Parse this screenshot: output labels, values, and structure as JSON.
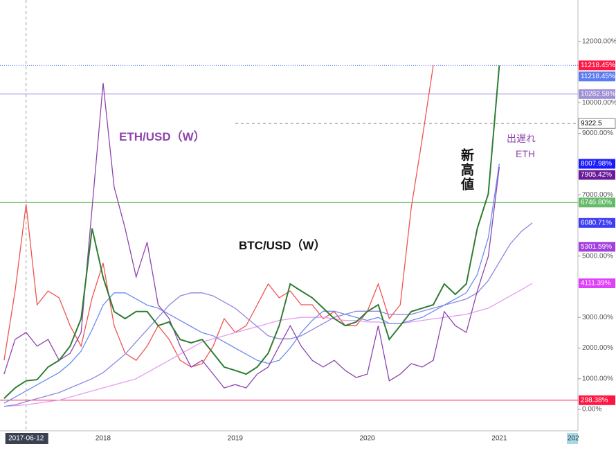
{
  "chart_data": {
    "type": "line",
    "categories": [
      null,
      null,
      "2017-06-12",
      null,
      null,
      null,
      null,
      null,
      null,
      "2018",
      null,
      null,
      null,
      null,
      null,
      null,
      null,
      null,
      null,
      null,
      null,
      "2019",
      null,
      null,
      null,
      null,
      null,
      null,
      null,
      null,
      null,
      null,
      null,
      "2020",
      null,
      null,
      null,
      null,
      null,
      null,
      null,
      null,
      null,
      null,
      null,
      "2021",
      null,
      null,
      null,
      null,
      null,
      null,
      "202"
    ],
    "series": [
      {
        "color": "#ef5350",
        "values": [
          1600,
          3860,
          6690,
          3410,
          3860,
          3640,
          2730,
          2060,
          3640,
          4770,
          2730,
          1830,
          1600,
          2060,
          2730,
          2280,
          1600,
          1380,
          1490,
          2060,
          2960,
          2510,
          2730,
          3410,
          4090,
          3640,
          3860,
          3410,
          3410,
          2960,
          3190,
          2730,
          2730,
          3190,
          4090,
          2960,
          3410,
          6580,
          8840,
          11218.45,
          null,
          null,
          null,
          null,
          null,
          null,
          null,
          null,
          null,
          null,
          null,
          null,
          null
        ]
      },
      {
        "color": "#e59cf0",
        "values": [
          100,
          120,
          150,
          200,
          250,
          300,
          400,
          500,
          600,
          700,
          800,
          900,
          1000,
          1200,
          1400,
          1600,
          1800,
          2000,
          2200,
          2300,
          2400,
          2500,
          2600,
          2700,
          2800,
          2900,
          2950,
          3000,
          3000,
          3000,
          2950,
          2900,
          2900,
          2850,
          2850,
          2800,
          2800,
          2850,
          2900,
          2950,
          3000,
          3050,
          3100,
          3200,
          3300,
          3500,
          3700,
          3900,
          4111.39,
          null,
          null,
          null,
          null
        ]
      },
      {
        "color": "#8f86e0",
        "values": [
          100,
          150,
          250,
          350,
          450,
          550,
          700,
          850,
          1000,
          1200,
          1500,
          1800,
          2200,
          2600,
          3000,
          3400,
          3700,
          3800,
          3800,
          3700,
          3500,
          3300,
          3000,
          2700,
          2400,
          2300,
          2300,
          2400,
          2600,
          2800,
          3000,
          3100,
          3200,
          3200,
          3200,
          3100,
          3100,
          3100,
          3200,
          3300,
          3400,
          3500,
          3600,
          3800,
          4200,
          4800,
          5400,
          5800,
          6080.71,
          null,
          null,
          null,
          null
        ]
      },
      {
        "color": "#6a8cf0",
        "values": [
          200,
          400,
          600,
          800,
          1000,
          1200,
          1500,
          1900,
          2600,
          3400,
          3800,
          3800,
          3600,
          3400,
          3300,
          3100,
          2900,
          2700,
          2500,
          2400,
          2200,
          2000,
          1800,
          1600,
          1500,
          1600,
          2000,
          2500,
          2900,
          3200,
          3200,
          3100,
          3000,
          2900,
          3000,
          2800,
          2800,
          2900,
          3000,
          3200,
          3400,
          3600,
          3800,
          4400,
          5600,
          8007.98,
          null,
          null,
          null,
          null,
          null,
          null,
          null
        ]
      },
      {
        "name": "ETH/USD（W）",
        "color": "#8e44ad",
        "values": [
          1150,
          2280,
          2510,
          2060,
          2280,
          1600,
          1830,
          2510,
          6580,
          10640,
          7250,
          5900,
          4320,
          5450,
          3410,
          2960,
          2060,
          1380,
          1600,
          1150,
          700,
          810,
          700,
          1150,
          1380,
          2060,
          2730,
          2060,
          1600,
          1380,
          1600,
          1270,
          1040,
          1150,
          2730,
          930,
          1150,
          1490,
          1380,
          1600,
          3190,
          2730,
          2510,
          3860,
          4990,
          7905.42,
          null,
          null,
          null,
          null,
          null,
          null,
          null
        ]
      },
      {
        "name": "BTC/USD（W）",
        "color": "#2e7d32",
        "values": [
          360,
          700,
          930,
          970,
          1380,
          1600,
          2060,
          2960,
          5900,
          4300,
          3190,
          2960,
          3190,
          3190,
          2730,
          2850,
          2280,
          2170,
          2280,
          1830,
          1380,
          1270,
          1150,
          1380,
          1830,
          2730,
          4090,
          3860,
          3640,
          3300,
          2960,
          2730,
          2850,
          3190,
          3410,
          2280,
          2730,
          3190,
          3300,
          3410,
          4090,
          3750,
          4090,
          5900,
          7030,
          11218.45,
          null,
          null,
          null,
          null,
          null,
          null,
          null
        ]
      }
    ],
    "ylim": [
      -700,
      13350
    ],
    "yticks": [
      {
        "value": 0,
        "label": "0.00%"
      },
      {
        "value": 1000,
        "label": "1000.00%"
      },
      {
        "value": 2000,
        "label": "2000.00%"
      },
      {
        "value": 3000,
        "label": "3000.00%"
      },
      {
        "value": 5000,
        "label": "5000.00%"
      },
      {
        "value": 7000,
        "label": "7000.00%"
      },
      {
        "value": 9000,
        "label": "9000.00%"
      },
      {
        "value": 10000,
        "label": "10000.00%"
      },
      {
        "value": 12000,
        "label": "12000.00%"
      }
    ],
    "axis_markers": [
      {
        "value": 11218.45,
        "label": "11218.45%",
        "color": "#ff1744"
      },
      {
        "value": 11218.45,
        "label": "11218.45%",
        "color": "#5b7cf0",
        "line": "dotted"
      },
      {
        "value": 10282.58,
        "label": "10282.58%",
        "color": "#9f8fd6",
        "line": "solid"
      },
      {
        "value": 9322.5,
        "label": "9322.5",
        "color": "#ffffff",
        "line": "dashed"
      },
      {
        "value": 8007.98,
        "label": "8007.98%",
        "color": "#1a1aff"
      },
      {
        "value": 7905.42,
        "label": "7905.42%",
        "color": "#6a1b9a"
      },
      {
        "value": 6746.8,
        "label": "6746.80%",
        "color": "#66bb6a",
        "line": "solid"
      },
      {
        "value": 6080.71,
        "label": "6080.71%",
        "color": "#3d3df5"
      },
      {
        "value": 5301.59,
        "label": "5301.59%",
        "color": "#a23fe0"
      },
      {
        "value": 4111.39,
        "label": "4111.39%",
        "color": "#e040fb"
      },
      {
        "value": 298.38,
        "label": "298.38%",
        "color": "#ff1744",
        "line": "solid"
      }
    ],
    "annotations": [
      "新高値",
      "出遅れ",
      "ETH"
    ]
  }
}
